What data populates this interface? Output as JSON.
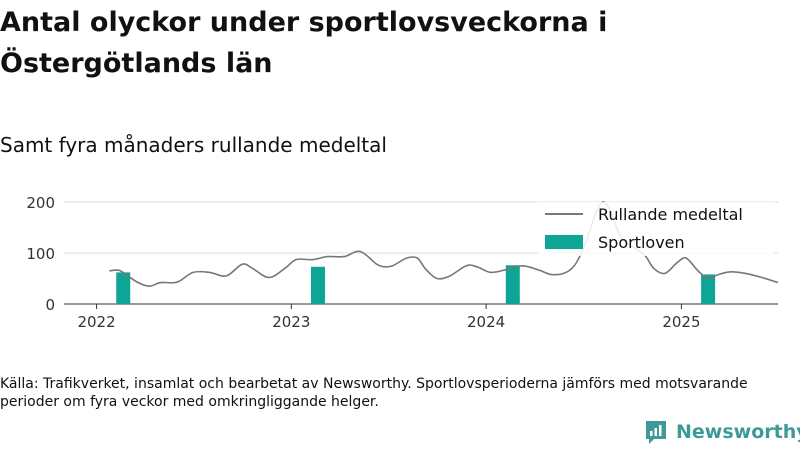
{
  "title": "Antal olyckor under sportlovsveckorna i Östergötlands län",
  "subtitle": "Samt fyra månaders rullande medeltal",
  "source": "Källa: Trafikverket, insamlat och bearbetat av Newsworthy. Sportlovsperioderna jämförs med motsvarande perioder om fyra veckor med omkringliggande helger.",
  "logo": {
    "text": "Newsworthy",
    "icon": "newsworthy-logo-icon"
  },
  "colors": {
    "line": "#777777",
    "bars": "#0fa596",
    "grid": "#dddddd",
    "brand": "#3d9a96"
  },
  "chart_data": {
    "type": "bar+line",
    "title": "Antal olyckor under sportlovsveckorna i Östergötlands län",
    "subtitle": "Samt fyra månaders rullande medeltal",
    "xlabel": "",
    "ylabel": "",
    "ylim": [
      0,
      200
    ],
    "yticks": [
      0,
      100,
      200
    ],
    "xlim": [
      "2021-11-01",
      "2025-07-01"
    ],
    "xticks": [
      "2022-01-01",
      "2023-01-01",
      "2024-01-01",
      "2025-01-01"
    ],
    "xtick_labels": [
      "2022",
      "2023",
      "2024",
      "2025"
    ],
    "grid": "horizontal",
    "legend": {
      "placement": "top-right",
      "entries": [
        {
          "name": "Rullande medeltal",
          "kind": "line"
        },
        {
          "name": "Sportloven",
          "kind": "bar"
        }
      ]
    },
    "series": [
      {
        "name": "Sportloven",
        "kind": "bar",
        "x": [
          "2022-02-20",
          "2023-02-20",
          "2024-02-20",
          "2025-02-20"
        ],
        "values": [
          62,
          73,
          76,
          58
        ]
      },
      {
        "name": "Rullande medeltal",
        "kind": "line",
        "points": [
          [
            "2022-01-25",
            65
          ],
          [
            "2022-02-12",
            66
          ],
          [
            "2022-03-01",
            55
          ],
          [
            "2022-03-20",
            42
          ],
          [
            "2022-04-10",
            35
          ],
          [
            "2022-05-01",
            42
          ],
          [
            "2022-06-01",
            43
          ],
          [
            "2022-07-01",
            62
          ],
          [
            "2022-08-01",
            62
          ],
          [
            "2022-09-01",
            55
          ],
          [
            "2022-10-01",
            78
          ],
          [
            "2022-10-20",
            70
          ],
          [
            "2022-11-20",
            52
          ],
          [
            "2022-12-20",
            70
          ],
          [
            "2023-01-10",
            87
          ],
          [
            "2023-02-10",
            87
          ],
          [
            "2023-03-10",
            93
          ],
          [
            "2023-04-10",
            93
          ],
          [
            "2023-05-10",
            103
          ],
          [
            "2023-06-10",
            78
          ],
          [
            "2023-06-25",
            73
          ],
          [
            "2023-07-10",
            75
          ],
          [
            "2023-08-05",
            90
          ],
          [
            "2023-08-25",
            90
          ],
          [
            "2023-09-10",
            68
          ],
          [
            "2023-10-01",
            50
          ],
          [
            "2023-10-25",
            55
          ],
          [
            "2023-11-25",
            75
          ],
          [
            "2023-12-15",
            73
          ],
          [
            "2024-01-10",
            62
          ],
          [
            "2024-02-10",
            68
          ],
          [
            "2024-03-10",
            75
          ],
          [
            "2024-04-10",
            66
          ],
          [
            "2024-05-01",
            58
          ],
          [
            "2024-05-25",
            60
          ],
          [
            "2024-06-15",
            76
          ],
          [
            "2024-07-05",
            118
          ],
          [
            "2024-07-20",
            165
          ],
          [
            "2024-08-01",
            195
          ],
          [
            "2024-08-12",
            198
          ],
          [
            "2024-08-25",
            172
          ],
          [
            "2024-09-10",
            130
          ],
          [
            "2024-10-05",
            110
          ],
          [
            "2024-10-25",
            95
          ],
          [
            "2024-11-10",
            70
          ],
          [
            "2024-12-01",
            60
          ],
          [
            "2024-12-25",
            82
          ],
          [
            "2025-01-10",
            90
          ],
          [
            "2025-02-01",
            65
          ],
          [
            "2025-02-20",
            50
          ],
          [
            "2025-03-10",
            57
          ],
          [
            "2025-04-01",
            63
          ],
          [
            "2025-05-01",
            60
          ],
          [
            "2025-06-01",
            52
          ],
          [
            "2025-07-01",
            42
          ]
        ]
      }
    ]
  }
}
